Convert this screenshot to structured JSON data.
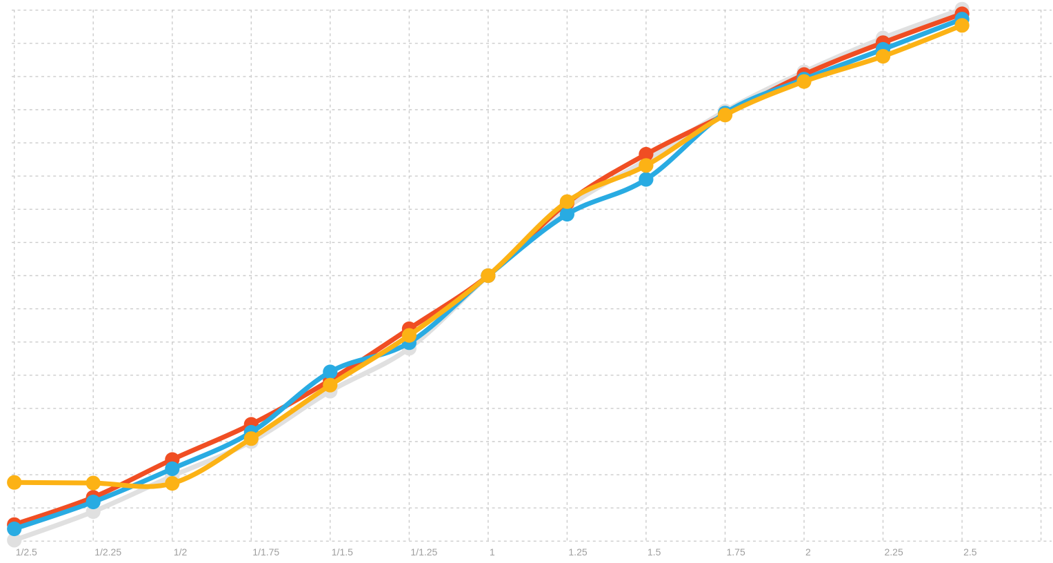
{
  "chart_data": {
    "type": "line",
    "title": "",
    "xlabel": "",
    "ylabel": "",
    "legend": "none",
    "grid": true,
    "grid_style": "dashed",
    "gridline_color": "#cbcbcb",
    "tick_label_color": "#9e9e9e",
    "background_color": "#ffffff",
    "x_tick_labels": [
      "1/2.5",
      "1/2.25",
      "1/2",
      "1/1.75",
      "1/1.5",
      "1/1.25",
      "1",
      "1.25",
      "1.5",
      "1.75",
      "2",
      "2.25",
      "2.5"
    ],
    "y_tick_labels": [],
    "x_gridline_count": 14,
    "y_gridline_count": 17,
    "has_extra_unlabeled_right_gridline": true,
    "y_unit": "gridline-units-from-bottom",
    "ylim": [
      0,
      16
    ],
    "series": [
      {
        "name": "gray-baseline",
        "color": "#e0e0e0",
        "values": [
          0.03,
          0.89,
          1.96,
          3.0,
          4.52,
          5.81,
          8.0,
          10.05,
          11.48,
          12.96,
          14.14,
          15.16,
          16.03
        ]
      },
      {
        "name": "red",
        "color": "#f04e23",
        "values": [
          0.5,
          1.32,
          2.46,
          3.52,
          4.85,
          6.4,
          8.0,
          10.19,
          11.66,
          12.85,
          14.06,
          15.02,
          15.89
        ]
      },
      {
        "name": "blue",
        "color": "#29abe2",
        "values": [
          0.37,
          1.18,
          2.18,
          3.28,
          5.1,
          5.98,
          8.0,
          9.85,
          10.9,
          12.9,
          13.92,
          14.82,
          15.73
        ]
      },
      {
        "name": "yellow",
        "color": "#fcb215",
        "values": [
          1.77,
          1.75,
          1.74,
          3.09,
          4.7,
          6.2,
          8.0,
          10.23,
          11.32,
          12.84,
          13.85,
          14.61,
          15.54
        ]
      }
    ]
  }
}
